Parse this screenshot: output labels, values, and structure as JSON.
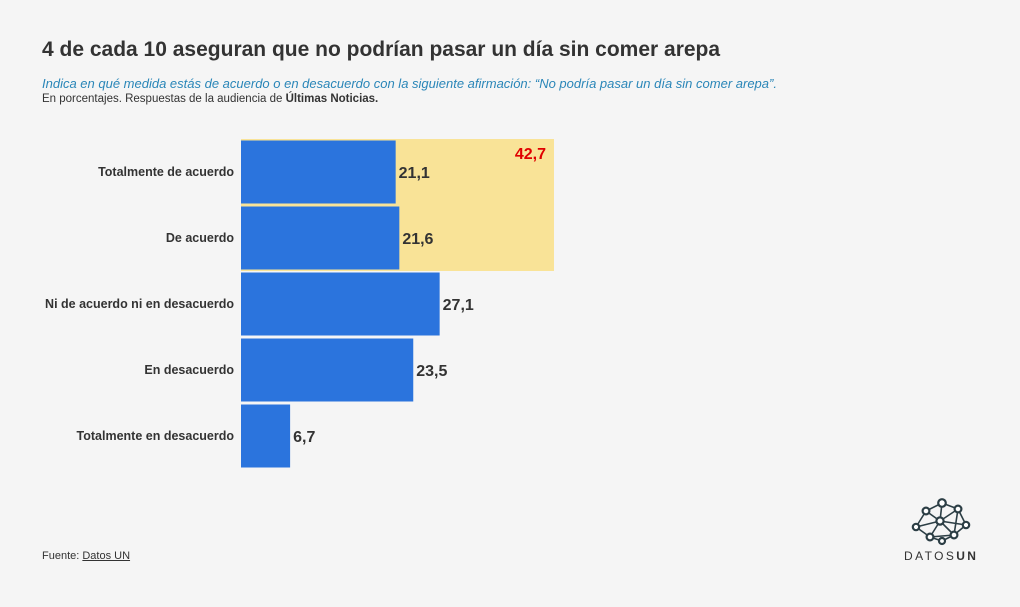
{
  "header": {
    "title": "4 de cada 10 aseguran que no podrían pasar un día sin comer arepa",
    "subtitle": "Indica en qué medida estás de acuerdo o en desacuerdo con la siguiente afirmación: “No podría pasar un día sin comer arepa”.",
    "note_prefix": "En porcentajes. Respuestas de la audiencia de ",
    "note_source": "Últimas Noticias."
  },
  "chart_data": {
    "type": "bar",
    "orientation": "horizontal",
    "categories": [
      "Totalmente de acuerdo",
      "De acuerdo",
      "Ni de acuerdo ni en desacuerdo",
      "En desacuerdo",
      "Totalmente en desacuerdo"
    ],
    "values": [
      21.1,
      21.6,
      27.1,
      23.5,
      6.7
    ],
    "value_labels": [
      "21,1",
      "21,6",
      "27,1",
      "23,5",
      "6,7"
    ],
    "xlim": [
      0,
      100
    ],
    "grid": false,
    "highlight": {
      "categories": [
        "Totalmente de acuerdo",
        "De acuerdo"
      ],
      "value": 42.7,
      "label": "42,7"
    },
    "colors": {
      "bar": "#2b74dd",
      "highlight_band": "#f9e397",
      "highlight_label": "#e00000"
    }
  },
  "footer": {
    "source_prefix": "Fuente: ",
    "source_name": "Datos UN"
  },
  "logo": {
    "icon": "network-nodes-icon",
    "text_light": "DATOS",
    "text_bold": "UN"
  }
}
